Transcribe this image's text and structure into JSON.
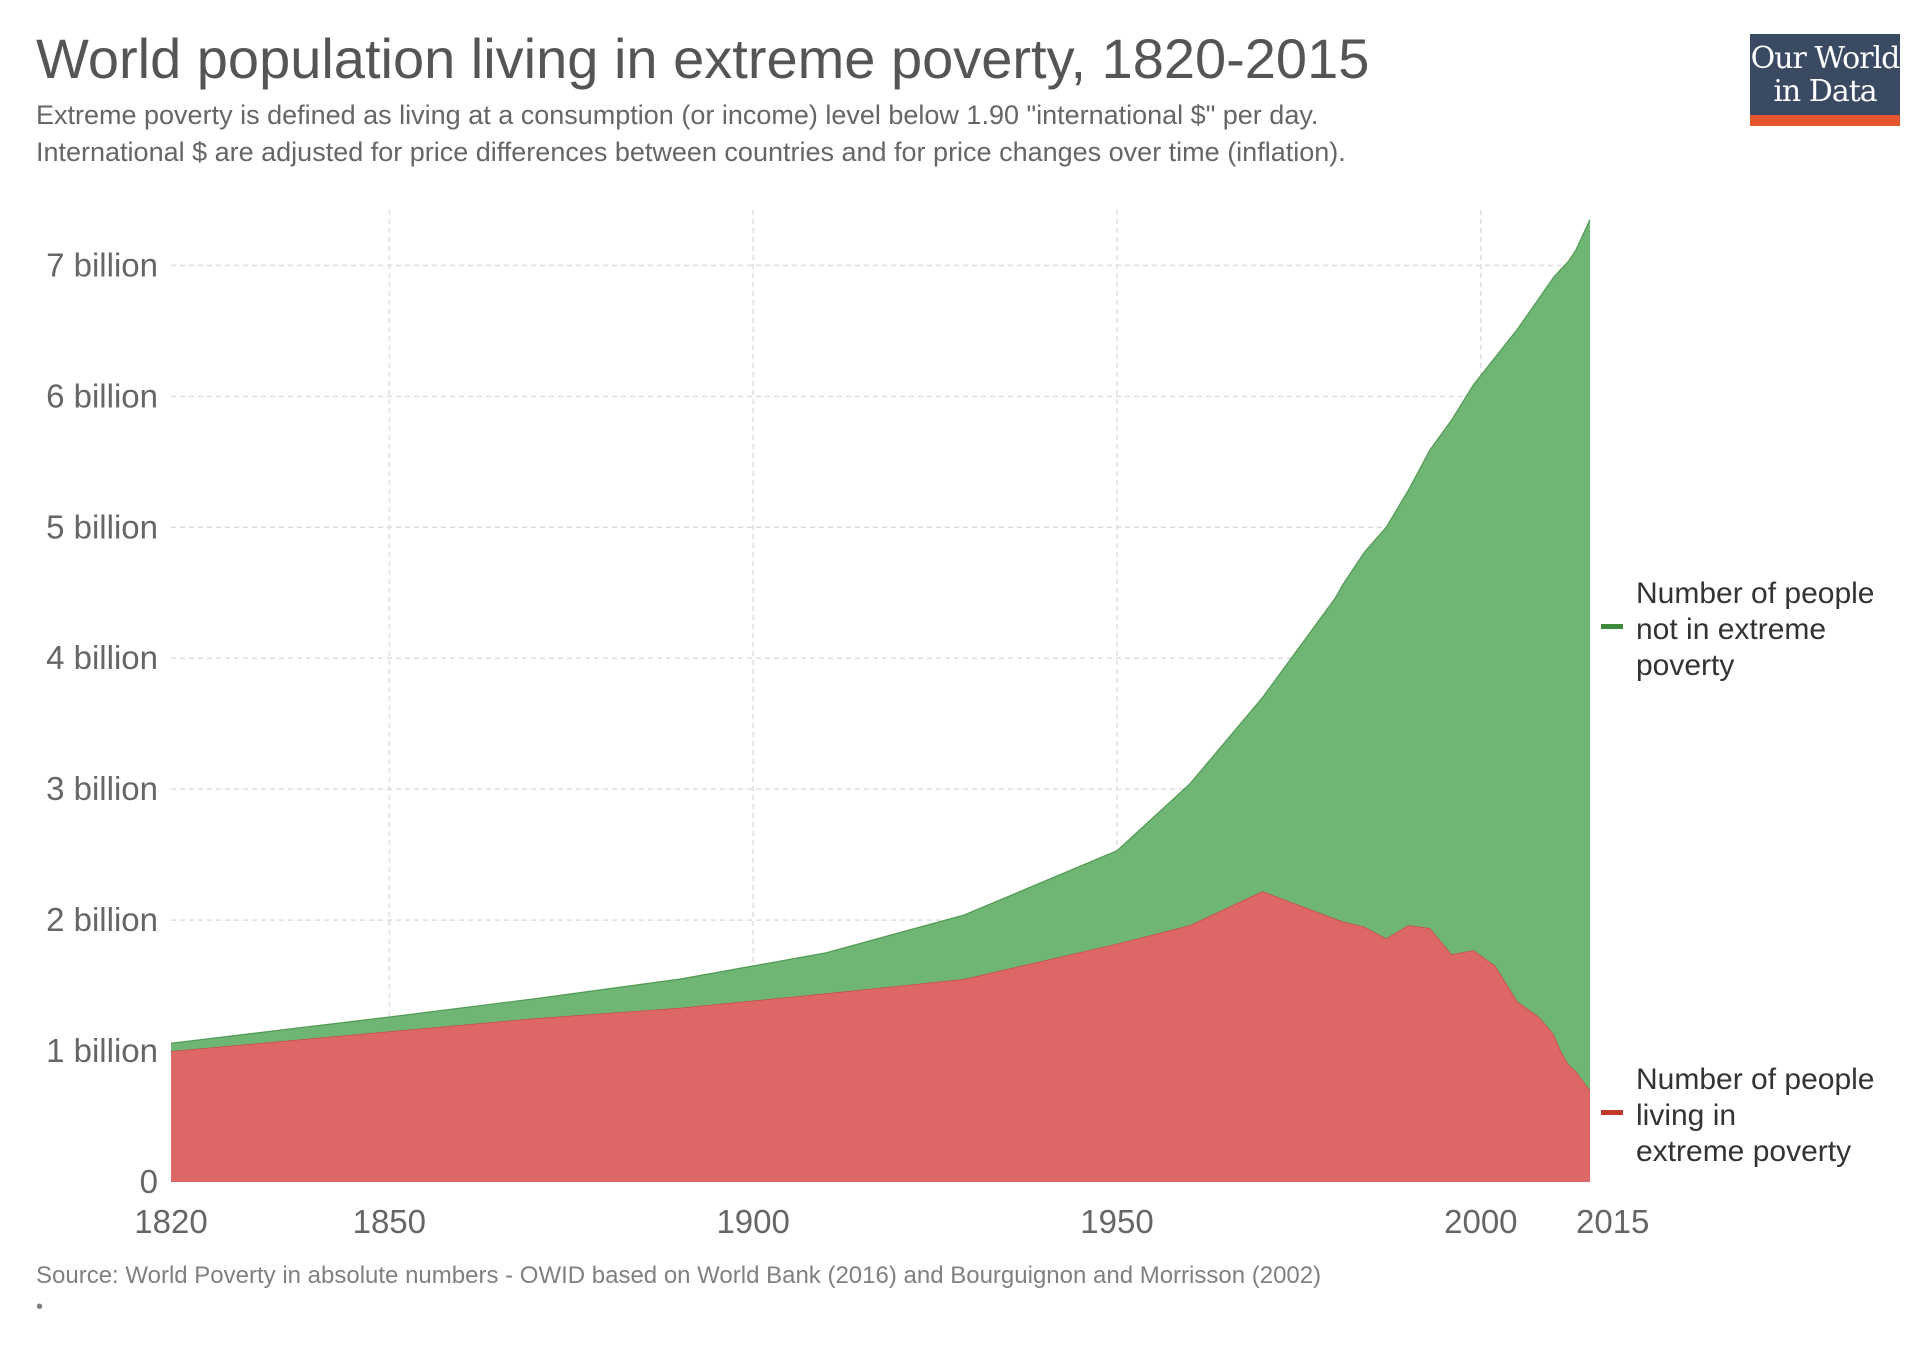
{
  "header": {
    "title": "World population living in extreme poverty, 1820-2015",
    "subtitle_line1": "Extreme poverty is defined as living at a consumption (or income) level below 1.90 \"international $\" per day.",
    "subtitle_line2": "International $ are adjusted for price differences between countries and for price changes over time (inflation)."
  },
  "logo": {
    "line1": "Our World",
    "line2": "in Data",
    "bg_color": "#3a4a63",
    "accent_color": "#e4562e"
  },
  "footer": {
    "source": "Source: World Poverty in absolute numbers - OWID based on World Bank (2016) and Bourguignon and Morrisson (2002)",
    "bullet": "•"
  },
  "chart_data": {
    "type": "area",
    "stacked": true,
    "title": "World population living in extreme poverty, 1820-2015",
    "xlabel": "",
    "ylabel": "",
    "xlim": [
      1820,
      2015
    ],
    "ylim": [
      0,
      7400000000
    ],
    "grid": true,
    "legend_position": "right",
    "x_ticks": [
      1820,
      1850,
      1900,
      1950,
      2000,
      2015
    ],
    "x_tick_labels": [
      "1820",
      "1850",
      "1900",
      "1950",
      "2000",
      "2015"
    ],
    "y_ticks": [
      0,
      1000000000,
      2000000000,
      3000000000,
      4000000000,
      5000000000,
      6000000000,
      7000000000
    ],
    "y_tick_labels": [
      "0",
      "1 billion",
      "2 billion",
      "3 billion",
      "4 billion",
      "5 billion",
      "6 billion",
      "7 billion"
    ],
    "x": [
      1820,
      1850,
      1870,
      1890,
      1910,
      1929,
      1950,
      1960,
      1970,
      1980,
      1981,
      1984,
      1987,
      1990,
      1993,
      1996,
      1999,
      2002,
      2005,
      2008,
      2010,
      2011,
      2012,
      2013,
      2015
    ],
    "series": [
      {
        "name": "Number of people living in extreme poverty",
        "color": "#dd6666",
        "line_color": "#c0392b",
        "values": [
          1000000000,
          1150000000,
          1250000000,
          1330000000,
          1440000000,
          1550000000,
          1820000000,
          1960000000,
          2220000000,
          2010000000,
          1990000000,
          1950000000,
          1860000000,
          1960000000,
          1940000000,
          1740000000,
          1770000000,
          1650000000,
          1380000000,
          1260000000,
          1130000000,
          1000000000,
          900000000,
          850000000,
          700000000
        ]
      },
      {
        "name": "Number of people not in extreme poverty",
        "color": "#6fb674",
        "line_color": "#3d8b3d",
        "values": [
          60000000,
          110000000,
          150000000,
          220000000,
          310000000,
          490000000,
          710000000,
          1080000000,
          1480000000,
          2450000000,
          2570000000,
          2860000000,
          3140000000,
          3320000000,
          3650000000,
          4080000000,
          4320000000,
          4650000000,
          5130000000,
          5490000000,
          5780000000,
          5970000000,
          6130000000,
          6260000000,
          6650000000
        ]
      }
    ]
  }
}
